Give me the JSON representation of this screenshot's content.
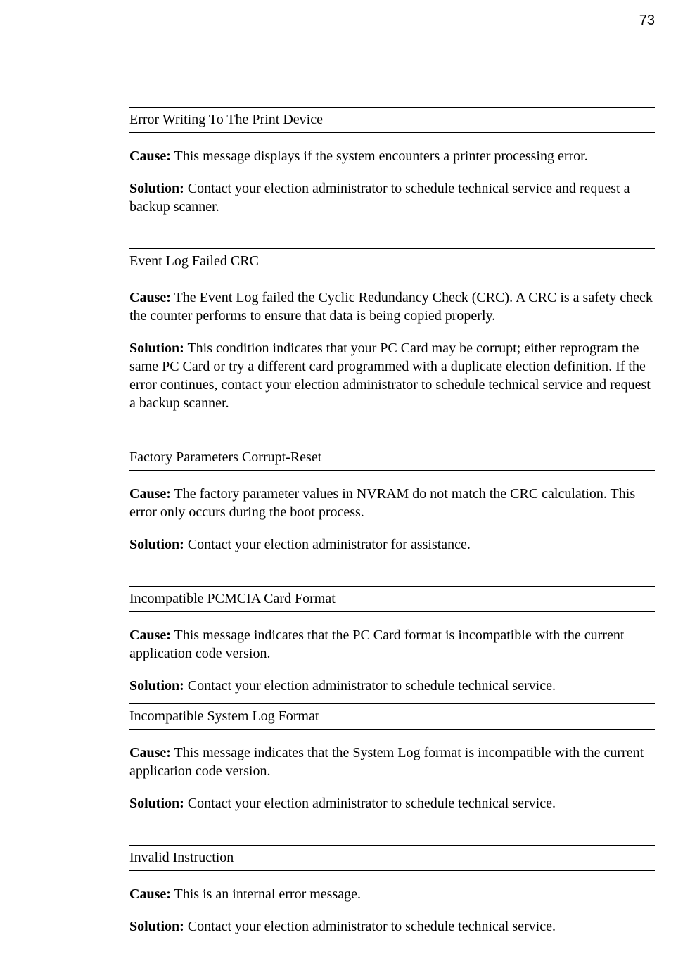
{
  "page_number": "73",
  "sections": [
    {
      "title": "Error Writing To The Print Device",
      "cause_label": "Cause:",
      "cause_text": " This message displays if the system encounters a printer processing error.",
      "solution_label": "Solution:",
      "solution_text": " Contact your election administrator to schedule technical service and request a backup scanner."
    },
    {
      "title": "Event Log Failed CRC",
      "cause_label": "Cause:",
      "cause_text": " The Event Log failed the Cyclic Redundancy Check (CRC). A CRC is a safety check the counter performs to ensure that data is being copied properly.",
      "solution_label": "Solution:",
      "solution_text": " This condition indicates that your PC Card may be corrupt; either reprogram the same PC Card or try a different card programmed with a duplicate election definition. If the error continues, contact your election administrator to schedule technical service and request a backup scanner."
    },
    {
      "title": "Factory Parameters Corrupt-Reset",
      "cause_label": "Cause:",
      "cause_text": " The factory parameter values in NVRAM do not match the CRC calculation. This error only occurs during the boot process.",
      "solution_label": "Solution:",
      "solution_text": " Contact your election administrator for assistance."
    },
    {
      "title": "Incompatible PCMCIA Card Format",
      "cause_label": "Cause:",
      "cause_text": " This message indicates that the PC Card format is incompatible with the current application code version.",
      "solution_label": "Solution:",
      "solution_text": " Contact your election administrator to schedule technical service."
    },
    {
      "title": "Incompatible System Log Format",
      "cause_label": "Cause:",
      "cause_text": " This message indicates that the System Log format is incompatible with the current application code version.",
      "solution_label": "Solution:",
      "solution_text": " Contact your election administrator to schedule technical service."
    },
    {
      "title": "Invalid Instruction",
      "cause_label": "Cause:",
      "cause_text": " This is an internal error message.",
      "solution_label": "Solution:",
      "solution_text": " Contact your election administrator to schedule technical service."
    }
  ]
}
